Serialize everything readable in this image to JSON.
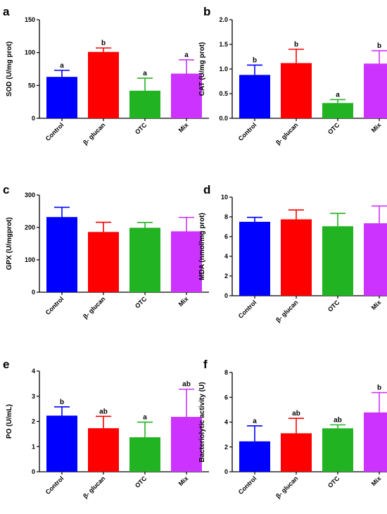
{
  "chart_data": [
    {
      "type": "bar",
      "panel": "a",
      "ylabel": "SOD (U/mg prot)",
      "ylim": [
        0,
        150
      ],
      "yticks": [
        0,
        50,
        100,
        150
      ],
      "categories": [
        "Control",
        "β- glucan",
        "OTC",
        "Mix"
      ],
      "values": [
        63,
        101,
        42,
        68
      ],
      "errors": [
        10,
        6,
        19,
        21
      ],
      "significance": [
        "a",
        "b",
        "a",
        "a"
      ],
      "colors": [
        "#0000ff",
        "#ff0000",
        "#22b322",
        "#cc33ff"
      ]
    },
    {
      "type": "bar",
      "panel": "b",
      "ylabel": "CAT (U/mg prot)",
      "ylim": [
        0,
        2.0
      ],
      "yticks": [
        "0.0",
        "0.5",
        "1.0",
        "1.5",
        "2.0"
      ],
      "categories": [
        "Control",
        "β- glucan",
        "OTC",
        "Mix"
      ],
      "values": [
        0.88,
        1.12,
        0.31,
        1.11
      ],
      "errors": [
        0.2,
        0.28,
        0.07,
        0.26
      ],
      "significance": [
        "b",
        "b",
        "a",
        "b"
      ],
      "colors": [
        "#0000ff",
        "#ff0000",
        "#22b322",
        "#cc33ff"
      ]
    },
    {
      "type": "bar",
      "panel": "c",
      "ylabel": "GPX (U/mgprot)",
      "ylim": [
        0,
        300
      ],
      "yticks": [
        0,
        100,
        200,
        300
      ],
      "categories": [
        "Control",
        "β- glucan",
        "OTC",
        "Mix"
      ],
      "values": [
        232,
        186,
        199,
        188
      ],
      "errors": [
        30,
        30,
        16,
        43
      ],
      "significance": [
        "",
        "",
        "",
        ""
      ],
      "colors": [
        "#0000ff",
        "#ff0000",
        "#22b322",
        "#cc33ff"
      ]
    },
    {
      "type": "bar",
      "panel": "d",
      "ylabel": "MDA (nmol/mg prot)",
      "ylim": [
        0,
        10
      ],
      "yticks": [
        0,
        2,
        4,
        6,
        8,
        10
      ],
      "categories": [
        "Control",
        "β- glucan",
        "OTC",
        "Mix"
      ],
      "values": [
        7.5,
        7.75,
        7.05,
        7.35
      ],
      "errors": [
        0.45,
        0.95,
        1.3,
        1.75
      ],
      "significance": [
        "",
        "",
        "",
        ""
      ],
      "colors": [
        "#0000ff",
        "#ff0000",
        "#22b322",
        "#cc33ff"
      ]
    },
    {
      "type": "bar",
      "panel": "e",
      "ylabel": "PO (U/mL)",
      "ylim": [
        0,
        4
      ],
      "yticks": [
        0,
        1,
        2,
        3,
        4
      ],
      "categories": [
        "Control",
        "β- glucan",
        "OTC",
        "Mix"
      ],
      "values": [
        2.23,
        1.73,
        1.37,
        2.18
      ],
      "errors": [
        0.35,
        0.47,
        0.6,
        1.1
      ],
      "significance": [
        "b",
        "ab",
        "a",
        "ab"
      ],
      "colors": [
        "#0000ff",
        "#ff0000",
        "#22b322",
        "#cc33ff"
      ]
    },
    {
      "type": "bar",
      "panel": "f",
      "ylabel": "Bacteriolytic activity (U)",
      "ylim": [
        0,
        8
      ],
      "yticks": [
        0,
        2,
        4,
        6,
        8
      ],
      "categories": [
        "Control",
        "β- glucan",
        "OTC",
        "Mix"
      ],
      "values": [
        2.45,
        3.1,
        3.5,
        4.78
      ],
      "errors": [
        1.25,
        1.2,
        0.28,
        1.6
      ],
      "significance": [
        "a",
        "ab",
        "ab",
        "b"
      ],
      "colors": [
        "#0000ff",
        "#ff0000",
        "#22b322",
        "#cc33ff"
      ]
    }
  ]
}
